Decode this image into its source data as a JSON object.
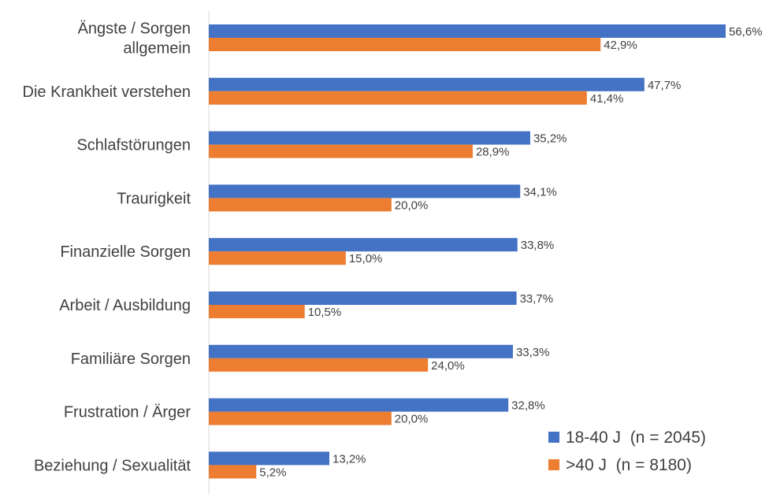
{
  "chart_data": {
    "type": "bar",
    "orientation": "horizontal",
    "categories": [
      [
        "Ängste / Sorgen",
        "allgemein"
      ],
      [
        "Die Krankheit verstehen"
      ],
      [
        "Schlafstörungen"
      ],
      [
        "Traurigkeit"
      ],
      [
        "Finanzielle Sorgen"
      ],
      [
        "Arbeit / Ausbildung"
      ],
      [
        "Familiäre Sorgen"
      ],
      [
        "Frustration / Ärger"
      ],
      [
        "Beziehung / Sexualität"
      ]
    ],
    "series": [
      {
        "name": "18-40 J  (n = 2045)",
        "color": "#4472C4",
        "values": [
          56.6,
          47.7,
          35.2,
          34.1,
          33.8,
          33.7,
          33.3,
          32.8,
          13.2
        ],
        "labels": [
          "56,6%",
          "47,7%",
          "35,2%",
          "34,1%",
          "33,8%",
          "33,7%",
          "33,3%",
          "32,8%",
          "13,2%"
        ]
      },
      {
        "name": ">40 J  (n = 8180)",
        "color": "#ED7D31",
        "values": [
          42.9,
          41.4,
          28.9,
          20.0,
          15.0,
          10.5,
          24.0,
          20.0,
          5.2
        ],
        "labels": [
          "42,9%",
          "41,4%",
          "28,9%",
          "20,0%",
          "15,0%",
          "10,5%",
          "24,0%",
          "20,0%",
          "5,2%"
        ]
      }
    ],
    "xlim": [
      0,
      56.6
    ],
    "grid": false,
    "legend_position": "bottom-right"
  }
}
